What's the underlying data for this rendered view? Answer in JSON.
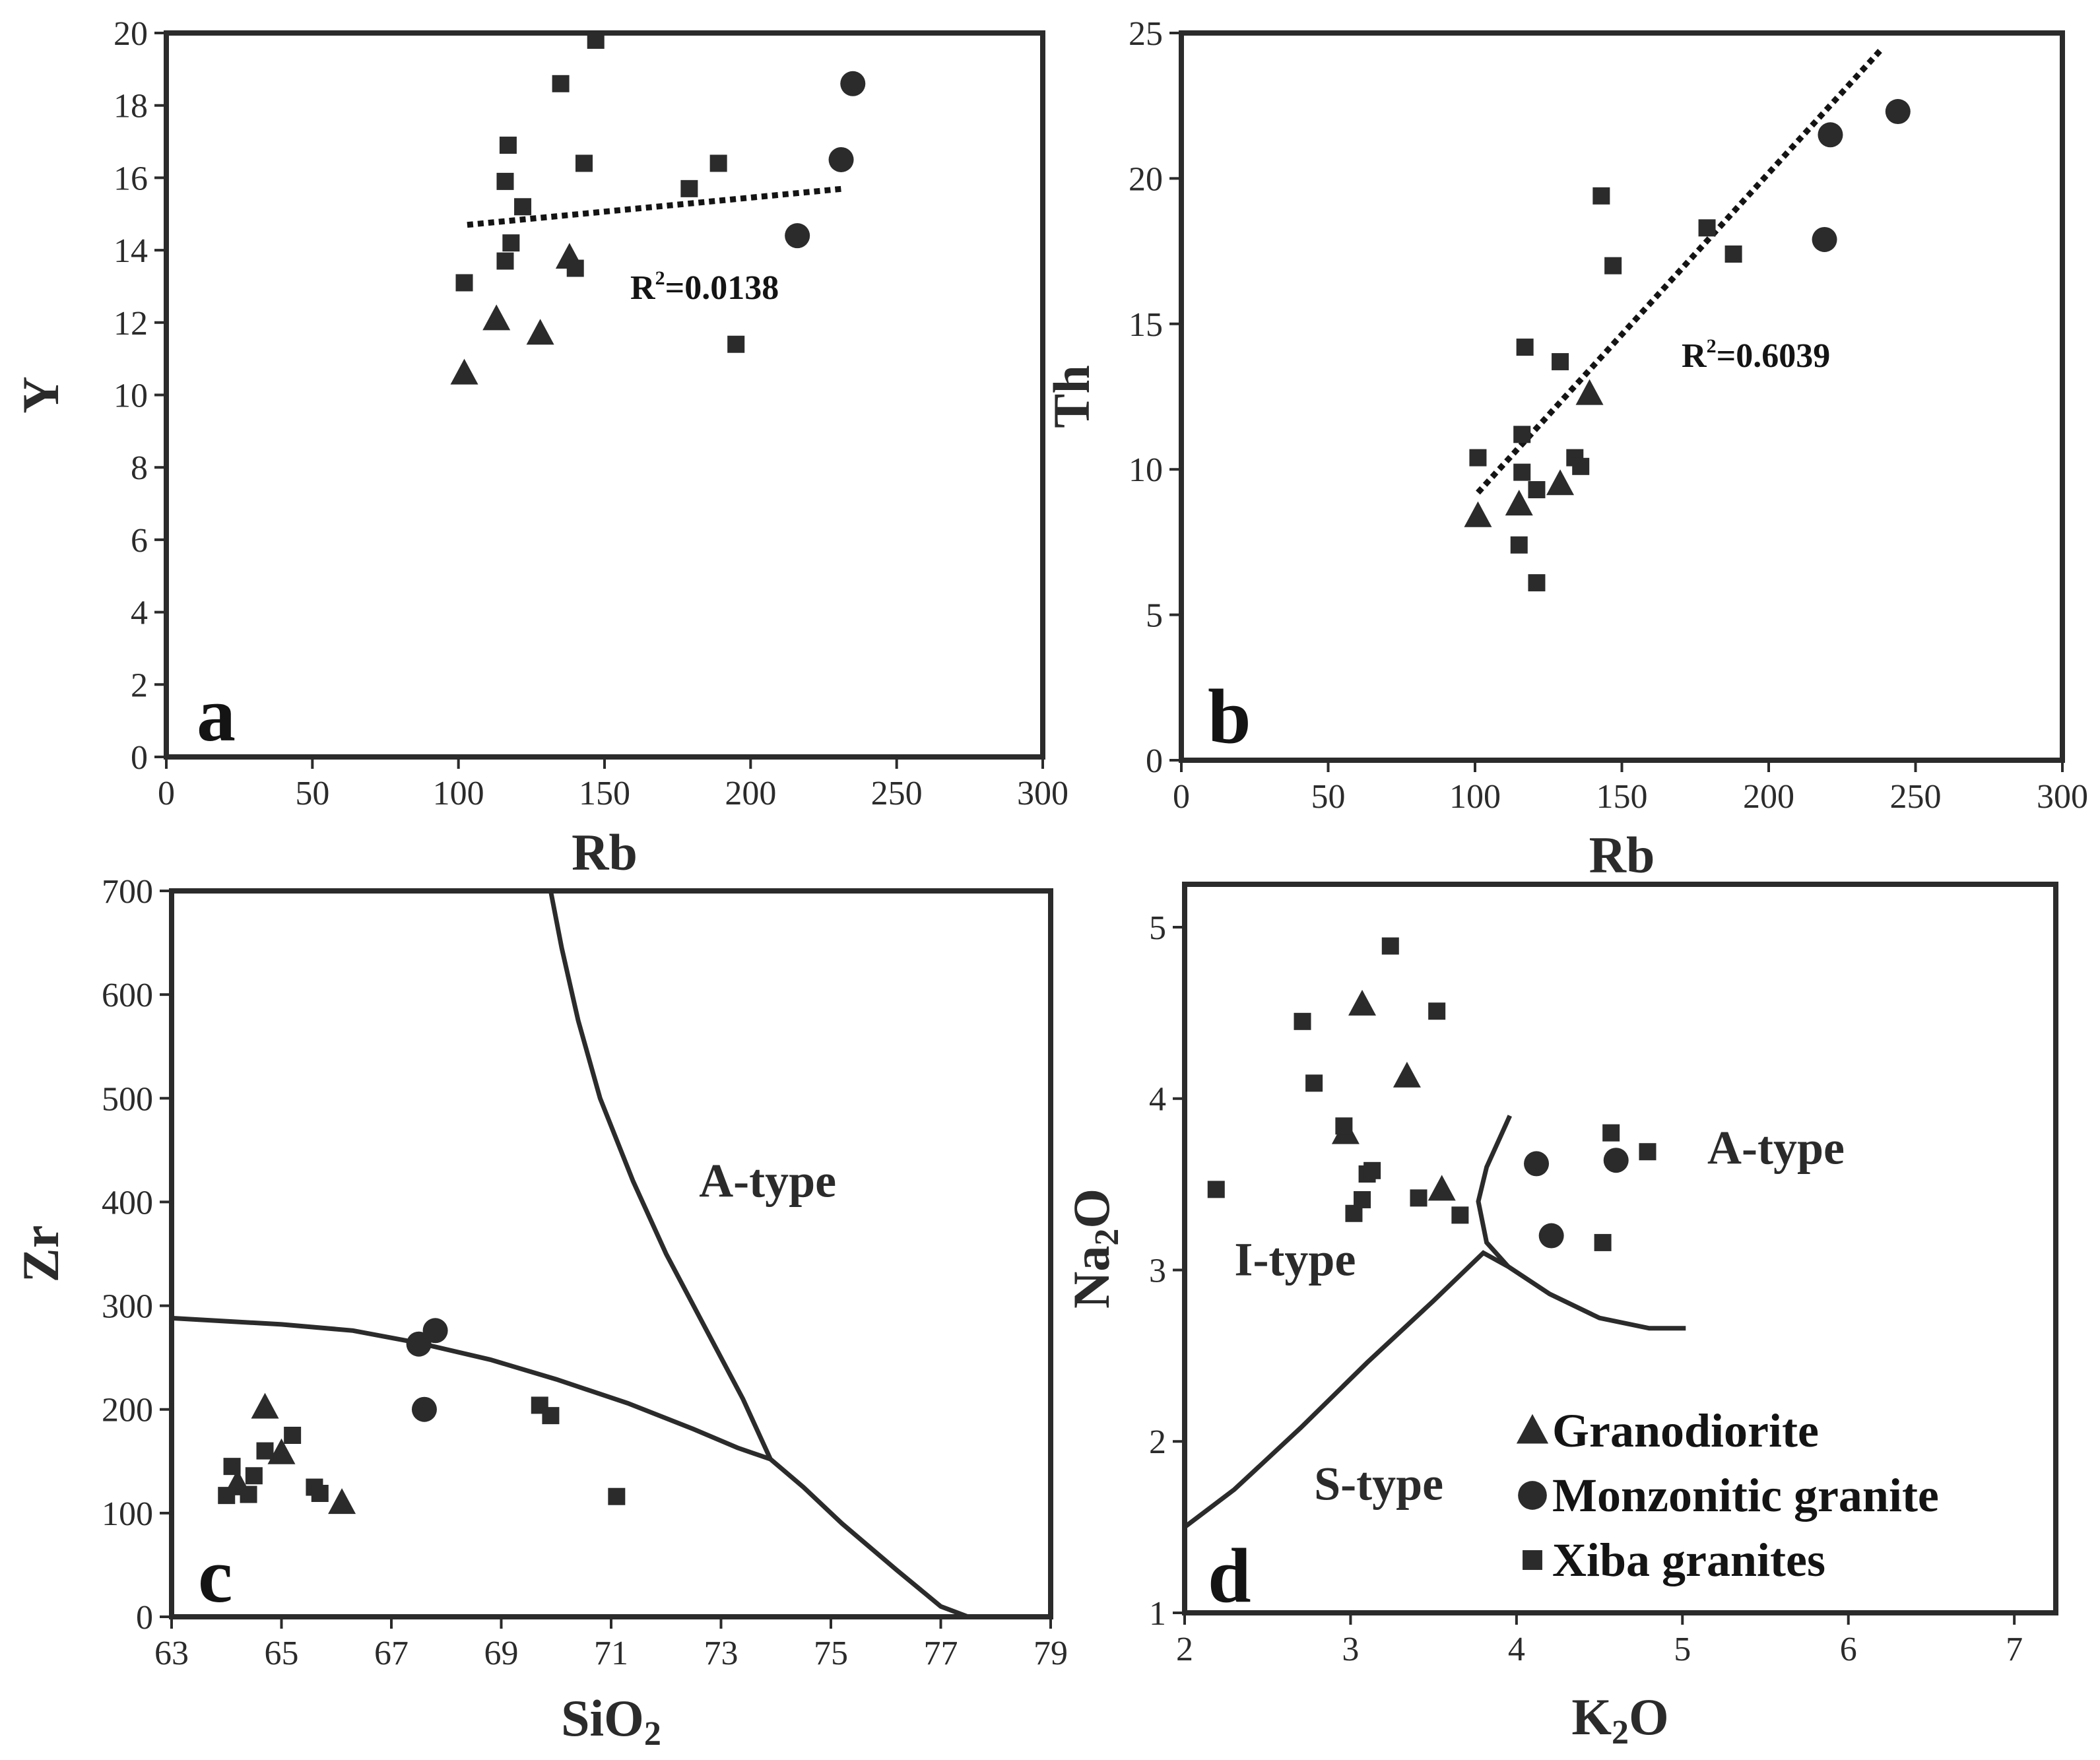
{
  "marker_color": "#2b2b2b",
  "chart_data": [
    {
      "id": "a",
      "type": "scatter",
      "panel_label": "a",
      "xlabel": "Rb",
      "ylabel": "Y",
      "xlim": [
        0,
        300
      ],
      "ylim": [
        0,
        20
      ],
      "xticks": [
        0,
        50,
        100,
        150,
        200,
        250,
        300
      ],
      "yticks": [
        0,
        2,
        4,
        6,
        8,
        10,
        12,
        14,
        16,
        18,
        20
      ],
      "annotation": {
        "prefix": "R",
        "sup": "2",
        "value": "=0.0138"
      },
      "trendline": {
        "x1": 103,
        "y1": 14.7,
        "x2": 232,
        "y2": 15.7
      },
      "series": [
        {
          "name": "Granodiorite",
          "marker": "triangle",
          "points": [
            [
              102,
              10.6
            ],
            [
              113,
              12.1
            ],
            [
              128,
              11.7
            ],
            [
              138,
              13.8
            ]
          ]
        },
        {
          "name": "Monzonitic granite",
          "marker": "circle",
          "points": [
            [
              216,
              14.4
            ],
            [
              231,
              16.5
            ],
            [
              235,
              18.6
            ]
          ]
        },
        {
          "name": "Xiba granites",
          "marker": "square",
          "points": [
            [
              102,
              13.1
            ],
            [
              116,
              13.7
            ],
            [
              116,
              15.9
            ],
            [
              117,
              16.9
            ],
            [
              118,
              14.2
            ],
            [
              122,
              15.2
            ],
            [
              135,
              18.6
            ],
            [
              140,
              13.5
            ],
            [
              143,
              16.4
            ],
            [
              147,
              19.8
            ],
            [
              179,
              15.7
            ],
            [
              189,
              16.4
            ],
            [
              195,
              11.4
            ]
          ]
        }
      ]
    },
    {
      "id": "b",
      "type": "scatter",
      "panel_label": "b",
      "xlabel": "Rb",
      "ylabel": "Th",
      "xlim": [
        0,
        300
      ],
      "ylim": [
        0,
        25
      ],
      "xticks": [
        0,
        50,
        100,
        150,
        200,
        250,
        300
      ],
      "yticks": [
        0,
        5,
        10,
        15,
        20,
        25
      ],
      "annotation": {
        "prefix": "R",
        "sup": "2",
        "value": "=0.6039"
      },
      "trendline": {
        "x1": 101,
        "y1": 9.2,
        "x2": 238,
        "y2": 24.4
      },
      "series": [
        {
          "name": "Granodiorite",
          "marker": "triangle",
          "points": [
            [
              101,
              8.4
            ],
            [
              115,
              8.8
            ],
            [
              129,
              9.5
            ],
            [
              139,
              12.6
            ]
          ]
        },
        {
          "name": "Monzonitic granite",
          "marker": "circle",
          "points": [
            [
              219,
              17.9
            ],
            [
              221,
              21.5
            ],
            [
              244,
              22.3
            ]
          ]
        },
        {
          "name": "Xiba granites",
          "marker": "square",
          "points": [
            [
              101,
              10.4
            ],
            [
              115,
              7.4
            ],
            [
              116,
              9.9
            ],
            [
              116,
              11.2
            ],
            [
              117,
              14.2
            ],
            [
              121,
              6.1
            ],
            [
              121,
              9.3
            ],
            [
              129,
              13.7
            ],
            [
              134,
              10.4
            ],
            [
              136,
              10.1
            ],
            [
              143,
              19.4
            ],
            [
              147,
              17.0
            ],
            [
              179,
              18.3
            ],
            [
              188,
              17.4
            ]
          ]
        }
      ]
    },
    {
      "id": "c",
      "type": "scatter",
      "panel_label": "c",
      "xlabel": "SiO",
      "xlabel_sub": "2",
      "ylabel": "Zr",
      "xlim": [
        63,
        79
      ],
      "ylim": [
        0,
        700
      ],
      "xticks": [
        63,
        65,
        67,
        69,
        71,
        73,
        75,
        77,
        79
      ],
      "yticks": [
        0,
        100,
        200,
        300,
        400,
        500,
        600,
        700
      ],
      "regions": [
        {
          "label": "A-type",
          "x": 72.6,
          "y": 405
        }
      ],
      "boundaries": [
        [
          [
            63,
            288
          ],
          [
            65,
            282
          ],
          [
            66.3,
            276
          ],
          [
            67.5,
            264
          ],
          [
            68.8,
            248
          ],
          [
            70,
            229
          ],
          [
            71.3,
            206
          ],
          [
            72.5,
            181
          ],
          [
            73.3,
            163
          ],
          [
            73.9,
            152
          ]
        ],
        [
          [
            69.9,
            700
          ],
          [
            70.1,
            645
          ],
          [
            70.4,
            575
          ],
          [
            70.8,
            500
          ],
          [
            71.4,
            420
          ],
          [
            72,
            350
          ],
          [
            72.7,
            280
          ],
          [
            73.4,
            210
          ],
          [
            73.9,
            152
          ],
          [
            74.5,
            125
          ],
          [
            75.2,
            90
          ],
          [
            76.2,
            45
          ],
          [
            77,
            10
          ],
          [
            77.5,
            0
          ]
        ]
      ],
      "series": [
        {
          "name": "Granodiorite",
          "marker": "triangle",
          "points": [
            [
              64.2,
              128
            ],
            [
              64.7,
              202
            ],
            [
              65,
              158
            ],
            [
              66.1,
              110
            ]
          ]
        },
        {
          "name": "Monzonitic granite",
          "marker": "circle",
          "points": [
            [
              67.5,
              263
            ],
            [
              67.6,
              200
            ],
            [
              67.8,
              276
            ]
          ]
        },
        {
          "name": "Xiba granites",
          "marker": "square",
          "points": [
            [
              64,
              117
            ],
            [
              64.1,
              145
            ],
            [
              64.4,
              118
            ],
            [
              64.5,
              136
            ],
            [
              64.7,
              160
            ],
            [
              65.2,
              175
            ],
            [
              65.6,
              125
            ],
            [
              65.7,
              119
            ],
            [
              69.7,
              204
            ],
            [
              69.9,
              194
            ],
            [
              71.1,
              116
            ]
          ]
        }
      ]
    },
    {
      "id": "d",
      "type": "scatter",
      "panel_label": "d",
      "xlabel": "K",
      "xlabel_sub": "2",
      "xlabel_suffix": "O",
      "ylabel": "Na",
      "ylabel_sub": "2",
      "ylabel_suffix": "O",
      "xlim": [
        2,
        7.25
      ],
      "ylim": [
        1,
        5.25
      ],
      "xticks": [
        2,
        3,
        4,
        5,
        6,
        7
      ],
      "yticks": [
        1,
        2,
        3,
        4,
        5
      ],
      "regions": [
        {
          "label": "I-type",
          "x": 2.3,
          "y": 2.97
        },
        {
          "label": "A-type",
          "x": 5.15,
          "y": 3.62
        },
        {
          "label": "S-type",
          "x": 2.78,
          "y": 1.66
        }
      ],
      "boundaries": [
        [
          [
            2,
            1.5
          ],
          [
            2.3,
            1.72
          ],
          [
            2.7,
            2.08
          ],
          [
            3.1,
            2.46
          ],
          [
            3.5,
            2.82
          ],
          [
            3.8,
            3.1
          ],
          [
            3.95,
            3.02
          ],
          [
            4.2,
            2.86
          ],
          [
            4.5,
            2.72
          ],
          [
            4.8,
            2.66
          ],
          [
            5.02,
            2.66
          ]
        ],
        [
          [
            3.95,
            3.02
          ],
          [
            3.82,
            3.16
          ],
          [
            3.77,
            3.4
          ],
          [
            3.82,
            3.6
          ],
          [
            3.96,
            3.9
          ]
        ]
      ],
      "legend": {
        "position": "bottom-right",
        "items": [
          {
            "label": "Granodiorite",
            "marker": "triangle"
          },
          {
            "label": "Monzonitic granite",
            "marker": "circle"
          },
          {
            "label": "Xiba granites",
            "marker": "square"
          }
        ]
      },
      "series": [
        {
          "name": "Granodiorite",
          "marker": "triangle",
          "points": [
            [
              2.97,
              3.8
            ],
            [
              3.07,
              4.55
            ],
            [
              3.34,
              4.13
            ],
            [
              3.55,
              3.47
            ]
          ]
        },
        {
          "name": "Monzonitic granite",
          "marker": "circle",
          "points": [
            [
              4.12,
              3.62
            ],
            [
              4.21,
              3.2
            ],
            [
              4.6,
              3.64
            ]
          ]
        },
        {
          "name": "Xiba granites",
          "marker": "square",
          "points": [
            [
              2.19,
              3.47
            ],
            [
              2.71,
              4.45
            ],
            [
              2.78,
              4.09
            ],
            [
              2.96,
              3.84
            ],
            [
              3.02,
              3.33
            ],
            [
              3.07,
              3.41
            ],
            [
              3.1,
              3.56
            ],
            [
              3.13,
              3.58
            ],
            [
              3.24,
              4.89
            ],
            [
              3.41,
              3.42
            ],
            [
              3.52,
              4.51
            ],
            [
              3.66,
              3.32
            ],
            [
              4.52,
              3.16
            ],
            [
              4.57,
              3.8
            ],
            [
              4.79,
              3.69
            ]
          ]
        }
      ]
    }
  ]
}
